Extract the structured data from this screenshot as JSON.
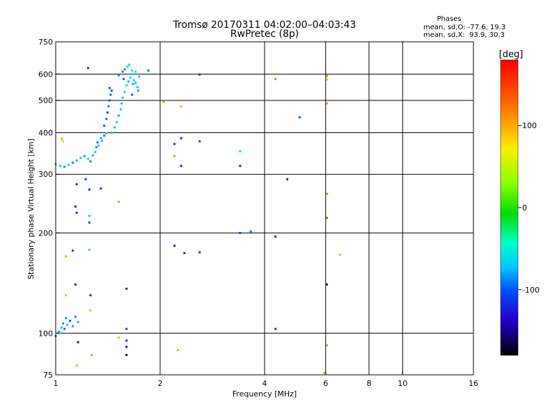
{
  "chart_data": {
    "type": "scatter",
    "title": "Tromsø 20170311 04:02:00–04:03:43",
    "subtitle": "RwPretec (8p)",
    "xlabel": "Frequency [MHz]",
    "ylabel": "Stationary phase Virtual Height [km]",
    "xscale": "log2",
    "yscale": "log",
    "xlim": [
      1,
      16
    ],
    "ylim": [
      75,
      750
    ],
    "x_ticks": [
      1,
      2,
      4,
      6,
      8,
      10,
      16
    ],
    "x_tick_labels": [
      "1",
      "2",
      "4",
      "6",
      "8",
      "10",
      "16"
    ],
    "x_grid": [
      2,
      4,
      6,
      8,
      10
    ],
    "y_ticks": [
      75,
      100,
      200,
      300,
      400,
      500,
      600,
      750
    ],
    "y_tick_labels": [
      "75",
      "100",
      "200",
      "300",
      "400",
      "500",
      "600",
      "750"
    ],
    "y_grid": [
      100,
      200,
      300,
      400,
      500,
      600
    ],
    "grid": true,
    "colorbar": {
      "label": "[deg]",
      "range": [
        -180,
        180
      ],
      "ticks": [
        100,
        0,
        -100
      ],
      "tick_labels": [
        "100",
        "0",
        "-100"
      ]
    },
    "stats": {
      "heading": "Phases",
      "line_o": "mean, sd,O: -77.6, 19.3",
      "line_x": "mean, sd,X:  93.9, 30.3"
    },
    "points": [
      {
        "x": 1.0,
        "y": 98,
        "phase": -90
      },
      {
        "x": 1.02,
        "y": 101,
        "phase": -80
      },
      {
        "x": 1.04,
        "y": 104,
        "phase": -75
      },
      {
        "x": 1.05,
        "y": 107,
        "phase": -85
      },
      {
        "x": 1.06,
        "y": 103,
        "phase": -95
      },
      {
        "x": 1.08,
        "y": 106,
        "phase": -70
      },
      {
        "x": 1.1,
        "y": 109,
        "phase": -100
      },
      {
        "x": 1.12,
        "y": 105,
        "phase": -80
      },
      {
        "x": 1.14,
        "y": 112,
        "phase": -90
      },
      {
        "x": 1.16,
        "y": 108,
        "phase": -75
      },
      {
        "x": 1.07,
        "y": 111,
        "phase": -85
      },
      {
        "x": 1.03,
        "y": 100,
        "phase": -60
      },
      {
        "x": 1.0,
        "y": 322,
        "phase": -75
      },
      {
        "x": 1.03,
        "y": 318,
        "phase": -70
      },
      {
        "x": 1.06,
        "y": 316,
        "phase": -80
      },
      {
        "x": 1.09,
        "y": 320,
        "phase": -65
      },
      {
        "x": 1.12,
        "y": 325,
        "phase": -85
      },
      {
        "x": 1.15,
        "y": 330,
        "phase": -75
      },
      {
        "x": 1.18,
        "y": 336,
        "phase": -70
      },
      {
        "x": 1.21,
        "y": 340,
        "phase": -80
      },
      {
        "x": 1.24,
        "y": 334,
        "phase": -60
      },
      {
        "x": 1.26,
        "y": 328,
        "phase": -90
      },
      {
        "x": 1.28,
        "y": 342,
        "phase": -75
      },
      {
        "x": 1.3,
        "y": 350,
        "phase": -70
      },
      {
        "x": 1.31,
        "y": 362,
        "phase": -85
      },
      {
        "x": 1.32,
        "y": 374,
        "phase": -95
      },
      {
        "x": 1.33,
        "y": 366,
        "phase": -65
      },
      {
        "x": 1.35,
        "y": 385,
        "phase": -80
      },
      {
        "x": 1.36,
        "y": 378,
        "phase": -70
      },
      {
        "x": 1.38,
        "y": 392,
        "phase": -90
      },
      {
        "x": 1.4,
        "y": 398,
        "phase": -75
      },
      {
        "x": 1.38,
        "y": 420,
        "phase": -100
      },
      {
        "x": 1.4,
        "y": 440,
        "phase": -95
      },
      {
        "x": 1.41,
        "y": 460,
        "phase": -105
      },
      {
        "x": 1.42,
        "y": 480,
        "phase": -90
      },
      {
        "x": 1.43,
        "y": 500,
        "phase": -100
      },
      {
        "x": 1.44,
        "y": 520,
        "phase": -95
      },
      {
        "x": 1.45,
        "y": 535,
        "phase": -105
      },
      {
        "x": 1.43,
        "y": 545,
        "phase": -100
      },
      {
        "x": 1.45,
        "y": 400,
        "phase": -70
      },
      {
        "x": 1.48,
        "y": 415,
        "phase": -75
      },
      {
        "x": 1.5,
        "y": 430,
        "phase": -65
      },
      {
        "x": 1.52,
        "y": 450,
        "phase": -80
      },
      {
        "x": 1.54,
        "y": 470,
        "phase": -70
      },
      {
        "x": 1.55,
        "y": 490,
        "phase": -75
      },
      {
        "x": 1.56,
        "y": 510,
        "phase": -65
      },
      {
        "x": 1.58,
        "y": 530,
        "phase": -70
      },
      {
        "x": 1.6,
        "y": 555,
        "phase": -60
      },
      {
        "x": 1.62,
        "y": 570,
        "phase": -75
      },
      {
        "x": 1.64,
        "y": 585,
        "phase": -65
      },
      {
        "x": 1.65,
        "y": 600,
        "phase": -70
      },
      {
        "x": 1.66,
        "y": 615,
        "phase": -60
      },
      {
        "x": 1.58,
        "y": 620,
        "phase": -80
      },
      {
        "x": 1.61,
        "y": 632,
        "phase": -65
      },
      {
        "x": 1.63,
        "y": 640,
        "phase": -70
      },
      {
        "x": 1.56,
        "y": 610,
        "phase": -90
      },
      {
        "x": 1.52,
        "y": 595,
        "phase": -85
      },
      {
        "x": 1.57,
        "y": 580,
        "phase": -95
      },
      {
        "x": 1.67,
        "y": 560,
        "phase": -80
      },
      {
        "x": 1.7,
        "y": 565,
        "phase": -75
      },
      {
        "x": 1.72,
        "y": 548,
        "phase": -70
      },
      {
        "x": 1.73,
        "y": 535,
        "phase": -80
      },
      {
        "x": 1.68,
        "y": 575,
        "phase": -60
      },
      {
        "x": 1.7,
        "y": 610,
        "phase": -65
      },
      {
        "x": 1.74,
        "y": 590,
        "phase": -75
      },
      {
        "x": 1.66,
        "y": 520,
        "phase": -100
      },
      {
        "x": 1.24,
        "y": 625,
        "phase": -110
      },
      {
        "x": 1.85,
        "y": 615,
        "phase": -95
      },
      {
        "x": 1.04,
        "y": 384,
        "phase": 110
      },
      {
        "x": 1.05,
        "y": 378,
        "phase": 100
      },
      {
        "x": 2.05,
        "y": 495,
        "phase": 120
      },
      {
        "x": 2.3,
        "y": 480,
        "phase": 110
      },
      {
        "x": 2.2,
        "y": 340,
        "phase": 120
      },
      {
        "x": 1.22,
        "y": 290,
        "phase": -110
      },
      {
        "x": 1.25,
        "y": 270,
        "phase": -120
      },
      {
        "x": 1.15,
        "y": 280,
        "phase": -115
      },
      {
        "x": 1.35,
        "y": 272,
        "phase": -110
      },
      {
        "x": 1.25,
        "y": 215,
        "phase": -100
      },
      {
        "x": 1.14,
        "y": 240,
        "phase": -120
      },
      {
        "x": 1.15,
        "y": 230,
        "phase": -110
      },
      {
        "x": 1.25,
        "y": 225,
        "phase": -70
      },
      {
        "x": 1.25,
        "y": 178,
        "phase": -60
      },
      {
        "x": 1.52,
        "y": 248,
        "phase": 120
      },
      {
        "x": 1.07,
        "y": 170,
        "phase": 115
      },
      {
        "x": 1.12,
        "y": 177,
        "phase": -110
      },
      {
        "x": 1.07,
        "y": 130,
        "phase": 110
      },
      {
        "x": 1.14,
        "y": 140,
        "phase": -120
      },
      {
        "x": 1.26,
        "y": 117,
        "phase": 110
      },
      {
        "x": 1.26,
        "y": 130,
        "phase": -120
      },
      {
        "x": 1.6,
        "y": 136,
        "phase": -115
      },
      {
        "x": 1.6,
        "y": 103,
        "phase": -110
      },
      {
        "x": 1.16,
        "y": 94,
        "phase": -140
      },
      {
        "x": 1.27,
        "y": 86,
        "phase": 120
      },
      {
        "x": 1.15,
        "y": 80,
        "phase": 110
      },
      {
        "x": 1.52,
        "y": 97,
        "phase": 110
      },
      {
        "x": 1.6,
        "y": 91,
        "phase": -130
      },
      {
        "x": 1.6,
        "y": 86,
        "phase": -135
      },
      {
        "x": 1.6,
        "y": 95,
        "phase": -115
      },
      {
        "x": 2.2,
        "y": 370,
        "phase": -110
      },
      {
        "x": 2.3,
        "y": 385,
        "phase": -115
      },
      {
        "x": 2.3,
        "y": 318,
        "phase": -120
      },
      {
        "x": 2.6,
        "y": 377,
        "phase": -110
      },
      {
        "x": 2.6,
        "y": 598,
        "phase": -115
      },
      {
        "x": 2.2,
        "y": 183,
        "phase": -120
      },
      {
        "x": 2.35,
        "y": 174,
        "phase": -120
      },
      {
        "x": 2.6,
        "y": 175,
        "phase": -115
      },
      {
        "x": 2.25,
        "y": 89,
        "phase": 110
      },
      {
        "x": 3.4,
        "y": 352,
        "phase": -70
      },
      {
        "x": 3.4,
        "y": 318,
        "phase": -120
      },
      {
        "x": 3.4,
        "y": 200,
        "phase": -110
      },
      {
        "x": 3.65,
        "y": 202,
        "phase": -90
      },
      {
        "x": 4.3,
        "y": 580,
        "phase": 130
      },
      {
        "x": 4.3,
        "y": 195,
        "phase": -120
      },
      {
        "x": 4.3,
        "y": 103,
        "phase": -115
      },
      {
        "x": 4.65,
        "y": 290,
        "phase": -120
      },
      {
        "x": 5.05,
        "y": 445,
        "phase": -100
      },
      {
        "x": 6.05,
        "y": 592,
        "phase": 130
      },
      {
        "x": 6.05,
        "y": 578,
        "phase": 110
      },
      {
        "x": 6.05,
        "y": 490,
        "phase": 120
      },
      {
        "x": 6.05,
        "y": 262,
        "phase": 130
      },
      {
        "x": 6.05,
        "y": 222,
        "phase": 150
      },
      {
        "x": 6.05,
        "y": 140,
        "phase": -140
      },
      {
        "x": 6.05,
        "y": 92,
        "phase": 120
      },
      {
        "x": 6.6,
        "y": 172,
        "phase": 110
      },
      {
        "x": 5.95,
        "y": 76,
        "phase": 120
      }
    ]
  }
}
